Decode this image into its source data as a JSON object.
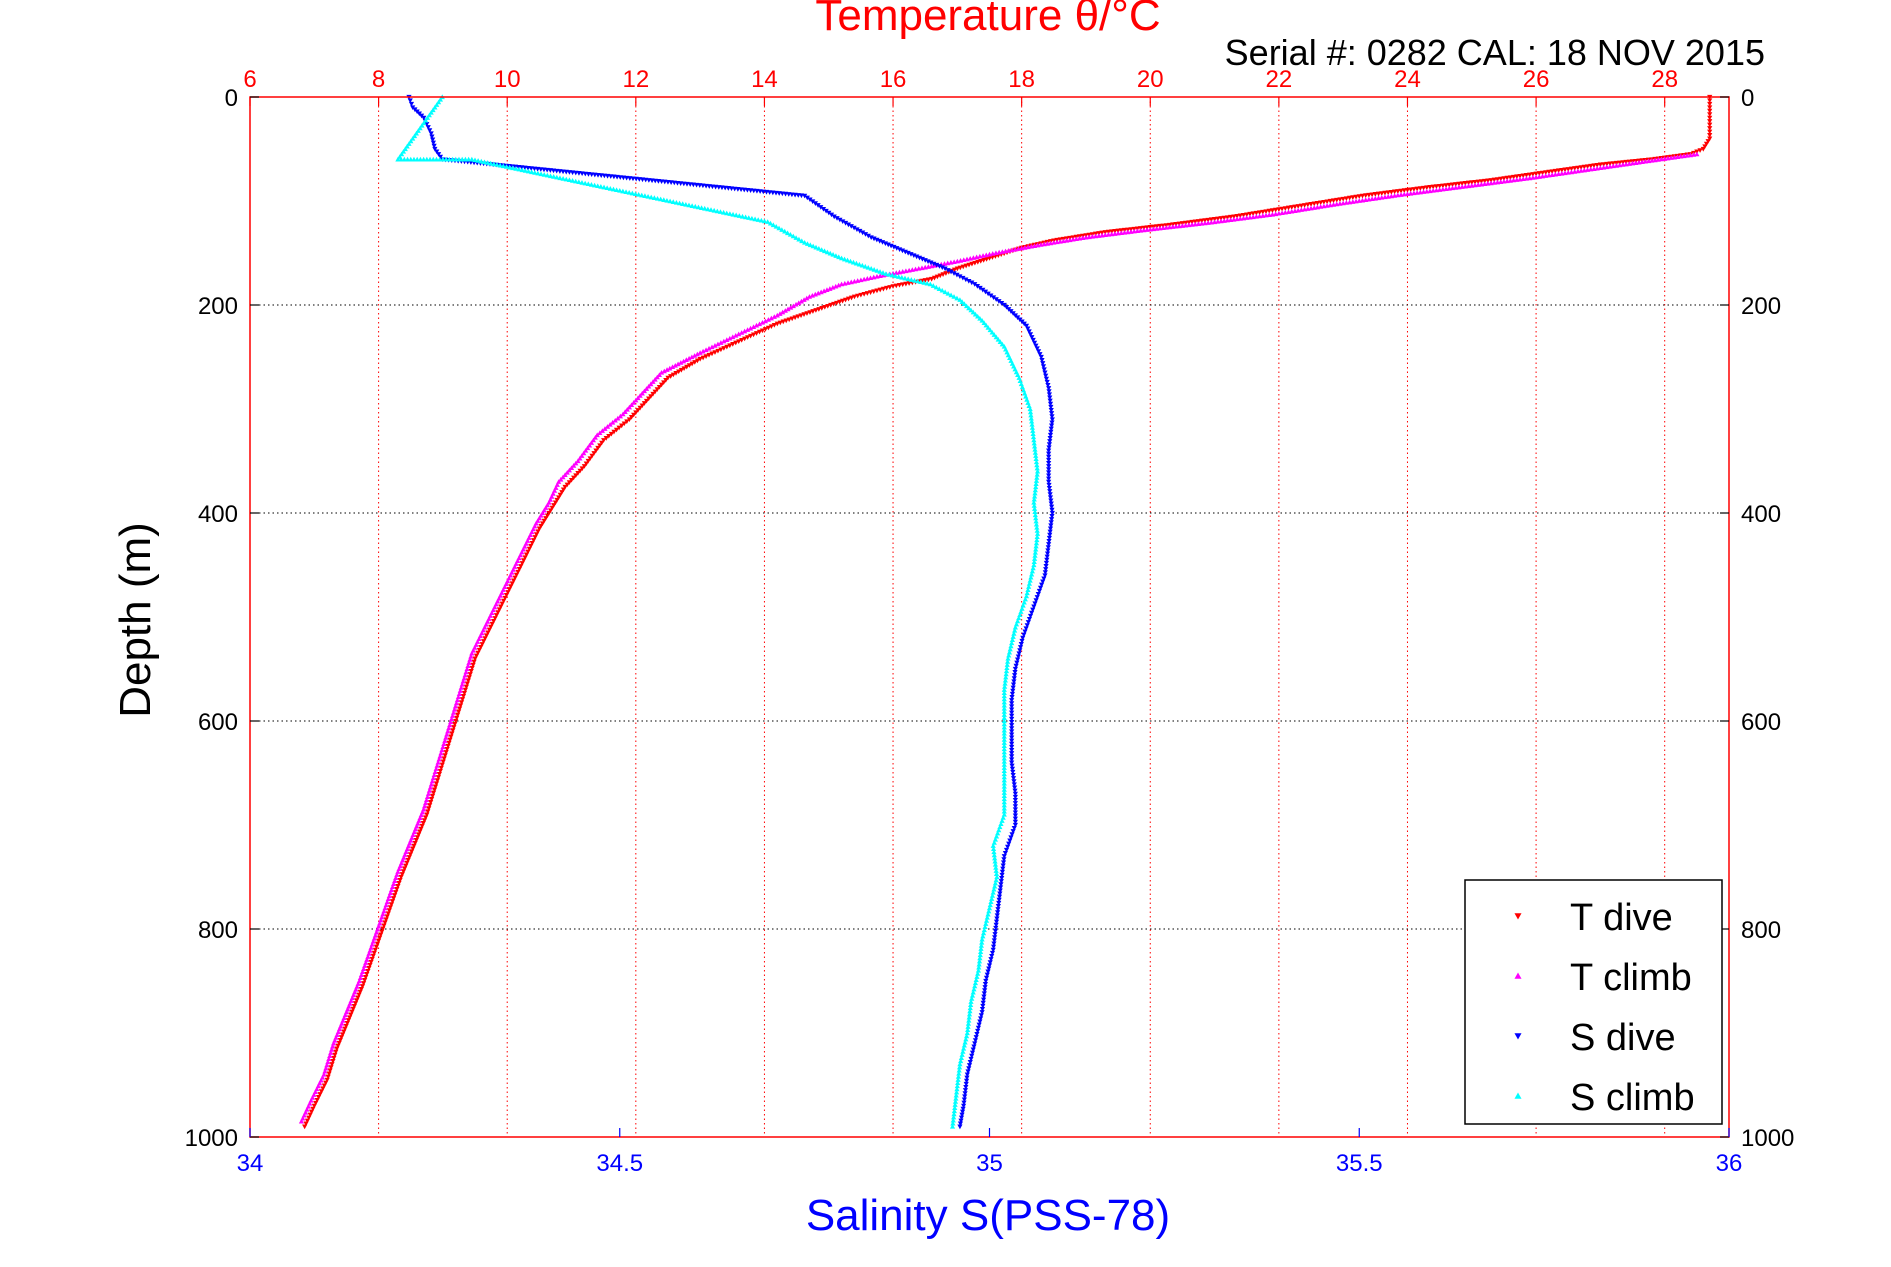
{
  "chart_data": {
    "type": "scatter",
    "title": "Temperature θ/°C",
    "subtitle": "Serial #: 0282  CAL: 18 NOV 2015",
    "ylabel": "Depth (m)",
    "xlabel_bottom": "Salinity S(PSS-78)",
    "y_axis": {
      "range": [
        0,
        1000
      ],
      "reversed": true,
      "ticks": [
        0,
        200,
        400,
        600,
        800,
        1000
      ],
      "tick_labels": [
        "0",
        "200",
        "400",
        "600",
        "800",
        "1000"
      ]
    },
    "x_top": {
      "range": [
        6,
        29
      ],
      "ticks": [
        6,
        8,
        10,
        12,
        14,
        16,
        18,
        20,
        22,
        24,
        26,
        28
      ],
      "tick_labels": [
        "6",
        "8",
        "10",
        "12",
        "14",
        "16",
        "18",
        "20",
        "22",
        "24",
        "26",
        "28"
      ]
    },
    "x_bottom": {
      "range": [
        34,
        36
      ],
      "ticks": [
        34,
        34.5,
        35,
        35.5,
        36
      ],
      "tick_labels": [
        "34",
        "34.5",
        "35",
        "35.5",
        "36"
      ]
    },
    "grid": true,
    "legend_placement": "bottom-right",
    "legend": [
      "T dive",
      "T climb",
      "S dive",
      "S climb"
    ],
    "series": [
      {
        "name": "T dive",
        "axis": "temperature",
        "color": "#ff0000",
        "marker": "triangle-down",
        "points": [
          [
            28.7,
            0
          ],
          [
            28.7,
            10
          ],
          [
            28.7,
            20
          ],
          [
            28.7,
            30
          ],
          [
            28.7,
            40
          ],
          [
            28.6,
            50
          ],
          [
            28.4,
            55
          ],
          [
            27.8,
            60
          ],
          [
            27.0,
            65
          ],
          [
            26.2,
            72
          ],
          [
            25.3,
            80
          ],
          [
            24.3,
            87
          ],
          [
            23.3,
            95
          ],
          [
            22.3,
            105
          ],
          [
            21.3,
            115
          ],
          [
            20.3,
            123
          ],
          [
            19.3,
            130
          ],
          [
            18.5,
            138
          ],
          [
            18.0,
            145
          ],
          [
            17.5,
            155
          ],
          [
            17.0,
            165
          ],
          [
            16.6,
            175
          ],
          [
            16.0,
            182
          ],
          [
            15.4,
            192
          ],
          [
            14.8,
            205
          ],
          [
            14.2,
            218
          ],
          [
            13.6,
            235
          ],
          [
            13.0,
            252
          ],
          [
            12.5,
            270
          ],
          [
            12.2,
            290
          ],
          [
            11.9,
            310
          ],
          [
            11.5,
            330
          ],
          [
            11.2,
            355
          ],
          [
            10.9,
            375
          ],
          [
            10.7,
            395
          ],
          [
            10.5,
            415
          ],
          [
            10.3,
            440
          ],
          [
            10.1,
            465
          ],
          [
            9.9,
            490
          ],
          [
            9.7,
            515
          ],
          [
            9.5,
            540
          ],
          [
            9.35,
            570
          ],
          [
            9.2,
            600
          ],
          [
            9.05,
            630
          ],
          [
            8.9,
            660
          ],
          [
            8.75,
            690
          ],
          [
            8.55,
            720
          ],
          [
            8.35,
            750
          ],
          [
            8.15,
            785
          ],
          [
            7.95,
            820
          ],
          [
            7.75,
            855
          ],
          [
            7.55,
            885
          ],
          [
            7.35,
            915
          ],
          [
            7.2,
            945
          ],
          [
            7.0,
            970
          ],
          [
            6.85,
            990
          ]
        ]
      },
      {
        "name": "T climb",
        "axis": "temperature",
        "color": "#ff00ff",
        "marker": "triangle-up",
        "points": [
          [
            28.5,
            55
          ],
          [
            27.7,
            62
          ],
          [
            26.8,
            70
          ],
          [
            25.9,
            78
          ],
          [
            24.9,
            86
          ],
          [
            23.9,
            94
          ],
          [
            22.9,
            103
          ],
          [
            21.9,
            113
          ],
          [
            20.9,
            121
          ],
          [
            19.9,
            128
          ],
          [
            19.0,
            135
          ],
          [
            18.3,
            142
          ],
          [
            17.6,
            150
          ],
          [
            17.0,
            158
          ],
          [
            16.4,
            165
          ],
          [
            15.8,
            172
          ],
          [
            15.2,
            180
          ],
          [
            14.7,
            192
          ],
          [
            14.2,
            210
          ],
          [
            13.6,
            228
          ],
          [
            13.0,
            246
          ],
          [
            12.4,
            265
          ],
          [
            12.1,
            285
          ],
          [
            11.8,
            305
          ],
          [
            11.4,
            325
          ],
          [
            11.1,
            350
          ],
          [
            10.8,
            370
          ],
          [
            10.65,
            390
          ],
          [
            10.45,
            410
          ],
          [
            10.25,
            435
          ],
          [
            10.05,
            460
          ],
          [
            9.85,
            485
          ],
          [
            9.65,
            510
          ],
          [
            9.45,
            535
          ],
          [
            9.3,
            565
          ],
          [
            9.15,
            595
          ],
          [
            9.0,
            625
          ],
          [
            8.85,
            655
          ],
          [
            8.7,
            685
          ],
          [
            8.5,
            715
          ],
          [
            8.3,
            745
          ],
          [
            8.1,
            780
          ],
          [
            7.9,
            815
          ],
          [
            7.7,
            850
          ],
          [
            7.5,
            880
          ],
          [
            7.3,
            910
          ],
          [
            7.15,
            940
          ],
          [
            6.95,
            965
          ],
          [
            6.8,
            985
          ]
        ]
      },
      {
        "name": "S dive",
        "axis": "salinity",
        "color": "#0000ff",
        "marker": "triangle-down",
        "points": [
          [
            34.215,
            0
          ],
          [
            34.22,
            10
          ],
          [
            34.235,
            20
          ],
          [
            34.245,
            35
          ],
          [
            34.25,
            50
          ],
          [
            34.26,
            60
          ],
          [
            34.75,
            95
          ],
          [
            34.79,
            115
          ],
          [
            34.84,
            135
          ],
          [
            34.89,
            150
          ],
          [
            34.94,
            165
          ],
          [
            34.98,
            180
          ],
          [
            35.02,
            200
          ],
          [
            35.05,
            220
          ],
          [
            35.07,
            250
          ],
          [
            35.08,
            280
          ],
          [
            35.085,
            310
          ],
          [
            35.08,
            340
          ],
          [
            35.08,
            370
          ],
          [
            35.085,
            400
          ],
          [
            35.08,
            430
          ],
          [
            35.075,
            460
          ],
          [
            35.06,
            490
          ],
          [
            35.045,
            520
          ],
          [
            35.035,
            550
          ],
          [
            35.03,
            580
          ],
          [
            35.03,
            610
          ],
          [
            35.03,
            640
          ],
          [
            35.035,
            670
          ],
          [
            35.035,
            700
          ],
          [
            35.02,
            730
          ],
          [
            35.015,
            760
          ],
          [
            35.01,
            790
          ],
          [
            35.005,
            820
          ],
          [
            34.995,
            850
          ],
          [
            34.99,
            880
          ],
          [
            34.98,
            910
          ],
          [
            34.97,
            940
          ],
          [
            34.965,
            970
          ],
          [
            34.96,
            990
          ]
        ]
      },
      {
        "name": "S climb",
        "axis": "salinity",
        "color": "#00ffff",
        "marker": "triangle-up",
        "points": [
          [
            34.26,
            0
          ],
          [
            34.2,
            60
          ],
          [
            34.3,
            60
          ],
          [
            34.7,
            120
          ],
          [
            34.75,
            140
          ],
          [
            34.8,
            155
          ],
          [
            34.86,
            170
          ],
          [
            34.92,
            180
          ],
          [
            34.96,
            195
          ],
          [
            34.99,
            215
          ],
          [
            35.02,
            240
          ],
          [
            35.04,
            270
          ],
          [
            35.055,
            300
          ],
          [
            35.06,
            330
          ],
          [
            35.065,
            360
          ],
          [
            35.06,
            390
          ],
          [
            35.065,
            420
          ],
          [
            35.06,
            450
          ],
          [
            35.05,
            480
          ],
          [
            35.035,
            510
          ],
          [
            35.025,
            540
          ],
          [
            35.02,
            570
          ],
          [
            35.02,
            600
          ],
          [
            35.02,
            630
          ],
          [
            35.02,
            660
          ],
          [
            35.02,
            690
          ],
          [
            35.005,
            720
          ],
          [
            35.01,
            750
          ],
          [
            35.0,
            780
          ],
          [
            34.99,
            810
          ],
          [
            34.985,
            840
          ],
          [
            34.975,
            870
          ],
          [
            34.97,
            900
          ],
          [
            34.96,
            930
          ],
          [
            34.955,
            960
          ],
          [
            34.95,
            990
          ]
        ]
      }
    ]
  }
}
